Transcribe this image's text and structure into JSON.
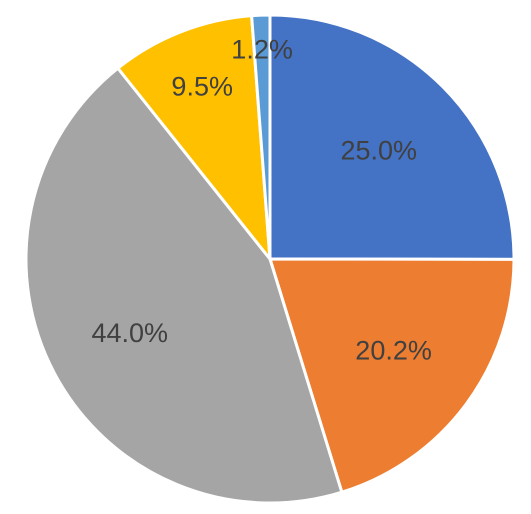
{
  "chart_data": {
    "type": "pie",
    "start_angle_deg": 0,
    "direction": "clockwise",
    "legend": "none",
    "title": "",
    "slices": [
      {
        "value": 25.0,
        "label": "25.0%",
        "color": "#4472C4"
      },
      {
        "value": 20.2,
        "label": "20.2%",
        "color": "#ED7D31"
      },
      {
        "value": 44.0,
        "label": "44.0%",
        "color": "#A5A5A5"
      },
      {
        "value": 9.5,
        "label": "9.5%",
        "color": "#FFC000"
      },
      {
        "value": 1.2,
        "label": "1.2%",
        "color": "#5B9BD5"
      }
    ]
  }
}
